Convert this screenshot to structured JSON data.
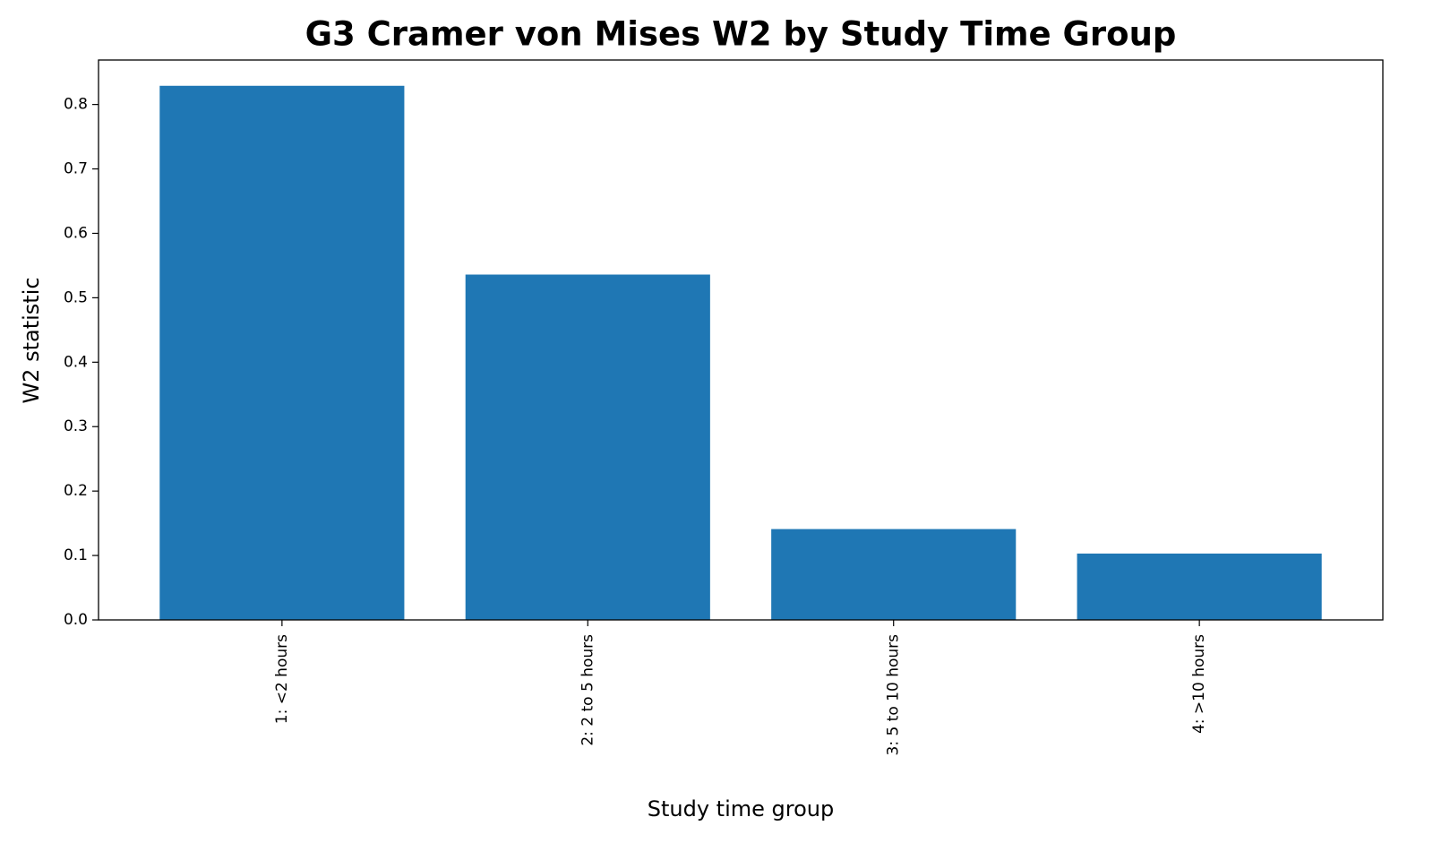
{
  "chart_data": {
    "type": "bar",
    "title": "G3 Cramer von Mises W2 by Study Time Group",
    "x_label": "Study time group",
    "y_label": "W2 statistic",
    "categories": [
      "1: <2 hours",
      "2: 2 to 5 hours",
      "3: 5 to 10 hours",
      "4: >10 hours"
    ],
    "values": [
      0.829,
      0.536,
      0.141,
      0.103
    ],
    "color": "#1f77b4",
    "ylim": [
      0,
      0.869
    ],
    "yticks": [
      {
        "value": 0,
        "label": "0.0"
      },
      0.1,
      0.2,
      0.3,
      0.4,
      0.5,
      0.6,
      0.7,
      0.8
    ],
    "grid": false
  }
}
